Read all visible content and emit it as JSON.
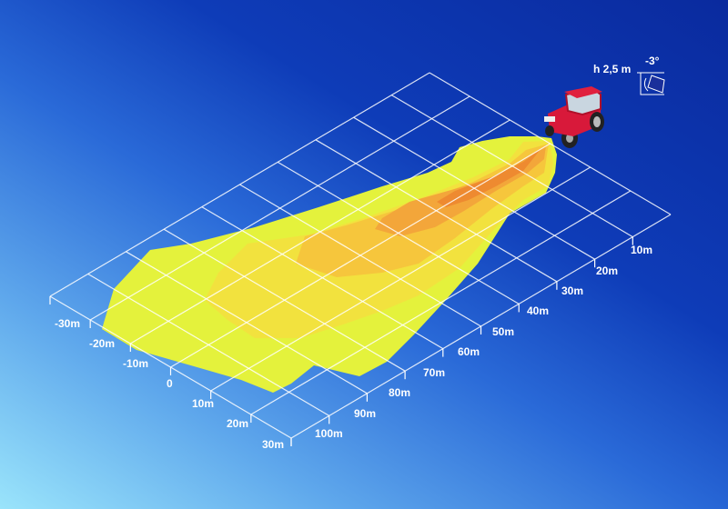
{
  "mounting": {
    "height_label": "h 2,5 m",
    "tilt_label": "-3°"
  },
  "distance_axis": {
    "labels": [
      "10m",
      "20m",
      "30m",
      "40m",
      "50m",
      "60m",
      "70m",
      "80m",
      "90m",
      "100m"
    ]
  },
  "lateral_axis": {
    "labels": [
      "-30m",
      "-20m",
      "-10m",
      "0",
      "10m",
      "20m",
      "30m"
    ]
  },
  "colors": {
    "outer": "#e4f23c",
    "level2": "#f2e23e",
    "level3": "#f6c63c",
    "level4": "#f3a63a",
    "level5": "#ee8a30",
    "grid": "#ffffff"
  }
}
